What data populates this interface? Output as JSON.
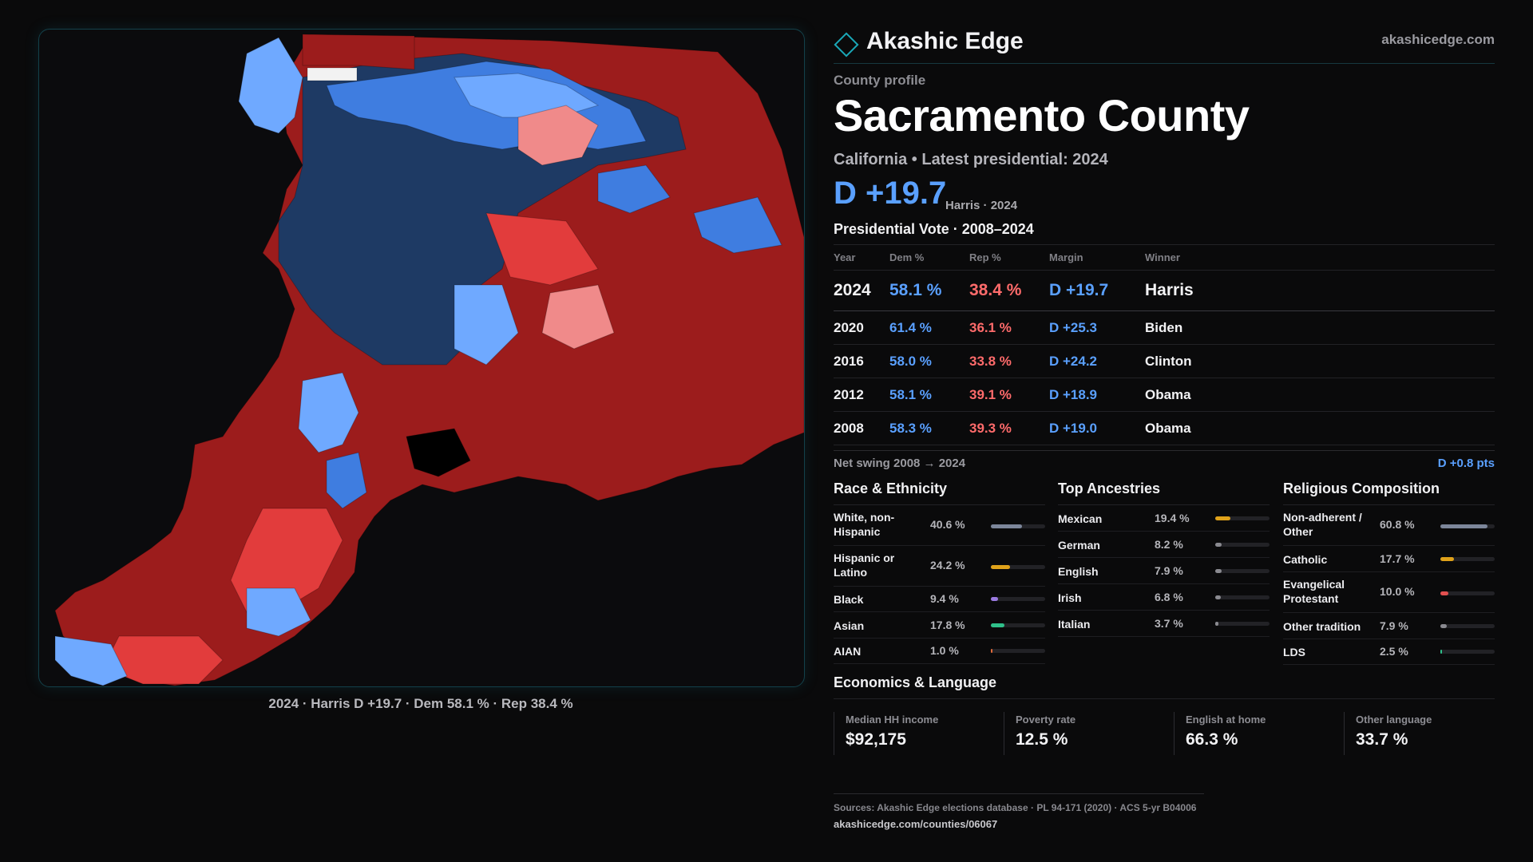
{
  "map": {
    "caption": "2024 · Harris D +19.7 · Dem 58.1 % · Rep 38.4 %",
    "colors": {
      "background": "#0b0b0d",
      "safe_d": "#1e3a64",
      "likely_d": "#3f7de0",
      "lean_d": "#6fa9ff",
      "lean_r": "#f08a8a",
      "likely_r": "#e23c3c",
      "safe_r": "#9c1c1c",
      "no_data": "#f2f2f2"
    }
  },
  "brand": {
    "name": "Akashic Edge",
    "url": "akashicedge.com",
    "icon": "diamond-icon"
  },
  "header": {
    "eyebrow": "County profile",
    "title": "Sacramento County",
    "subline": "California • Latest presidential: 2024",
    "margin": "D +19.7",
    "margin_note": "Harris · 2024"
  },
  "votes": {
    "title": "Presidential Vote · 2008–2024",
    "headers": [
      "Year",
      "Dem %",
      "Rep %",
      "Margin",
      "Winner"
    ],
    "rows": [
      {
        "year": "2024",
        "dem": "58.1 %",
        "rep": "38.4 %",
        "margin": "D +19.7",
        "winner": "Harris"
      },
      {
        "year": "2020",
        "dem": "61.4 %",
        "rep": "36.1 %",
        "margin": "D +25.3",
        "winner": "Biden"
      },
      {
        "year": "2016",
        "dem": "58.0 %",
        "rep": "33.8 %",
        "margin": "D +24.2",
        "winner": "Clinton"
      },
      {
        "year": "2012",
        "dem": "58.1 %",
        "rep": "39.1 %",
        "margin": "D +18.9",
        "winner": "Obama"
      },
      {
        "year": "2008",
        "dem": "58.3 %",
        "rep": "39.3 %",
        "margin": "D +19.0",
        "winner": "Obama"
      }
    ],
    "swing_label": "Net swing 2008 → 2024",
    "swing_value": "D +0.8 pts"
  },
  "race": {
    "title": "Race & Ethnicity",
    "items": [
      {
        "label": "White, non-Hispanic",
        "pct": "40.6 %",
        "share": 0.406,
        "color": "#7c869a"
      },
      {
        "label": "Hispanic or Latino",
        "pct": "24.2 %",
        "share": 0.242,
        "color": "#e0a21a"
      },
      {
        "label": "Black",
        "pct": "9.4 %",
        "share": 0.094,
        "color": "#9a7ae0"
      },
      {
        "label": "Asian",
        "pct": "17.8 %",
        "share": 0.178,
        "color": "#2fc08a"
      },
      {
        "label": "AIAN",
        "pct": "1.0 %",
        "share": 0.01,
        "color": "#e06a3a"
      }
    ]
  },
  "ancestries": {
    "title": "Top Ancestries",
    "items": [
      {
        "label": "Mexican",
        "pct": "19.4 %",
        "share": 0.194,
        "color": "#e0a21a"
      },
      {
        "label": "German",
        "pct": "8.2 %",
        "share": 0.082,
        "color": "#8a8a90"
      },
      {
        "label": "English",
        "pct": "7.9 %",
        "share": 0.079,
        "color": "#8a8a90"
      },
      {
        "label": "Irish",
        "pct": "6.8 %",
        "share": 0.068,
        "color": "#8a8a90"
      },
      {
        "label": "Italian",
        "pct": "3.7 %",
        "share": 0.037,
        "color": "#8a8a90"
      }
    ]
  },
  "religion": {
    "title": "Religious Composition",
    "items": [
      {
        "label": "Non-adherent / Other",
        "pct": "60.8 %",
        "share": 0.608,
        "color": "#7c869a"
      },
      {
        "label": "Catholic",
        "pct": "17.7 %",
        "share": 0.177,
        "color": "#e0a21a"
      },
      {
        "label": "Evangelical Protestant",
        "pct": "10.0 %",
        "share": 0.1,
        "color": "#e25050"
      },
      {
        "label": "Other tradition",
        "pct": "7.9 %",
        "share": 0.079,
        "color": "#8a8a90"
      },
      {
        "label": "LDS",
        "pct": "2.5 %",
        "share": 0.025,
        "color": "#2fc08a"
      }
    ]
  },
  "economics": {
    "title": "Economics & Language",
    "cards": [
      {
        "label": "Median HH income",
        "value": "$92,175"
      },
      {
        "label": "Poverty rate",
        "value": "12.5 %"
      },
      {
        "label": "English at home",
        "value": "66.3 %"
      },
      {
        "label": "Other language",
        "value": "33.7 %"
      }
    ]
  },
  "footer": {
    "sources": "Sources: Akashic Edge elections database · PL 94-171 (2020) · ACS 5-yr B04006",
    "url": "akashicedge.com/counties/06067"
  }
}
